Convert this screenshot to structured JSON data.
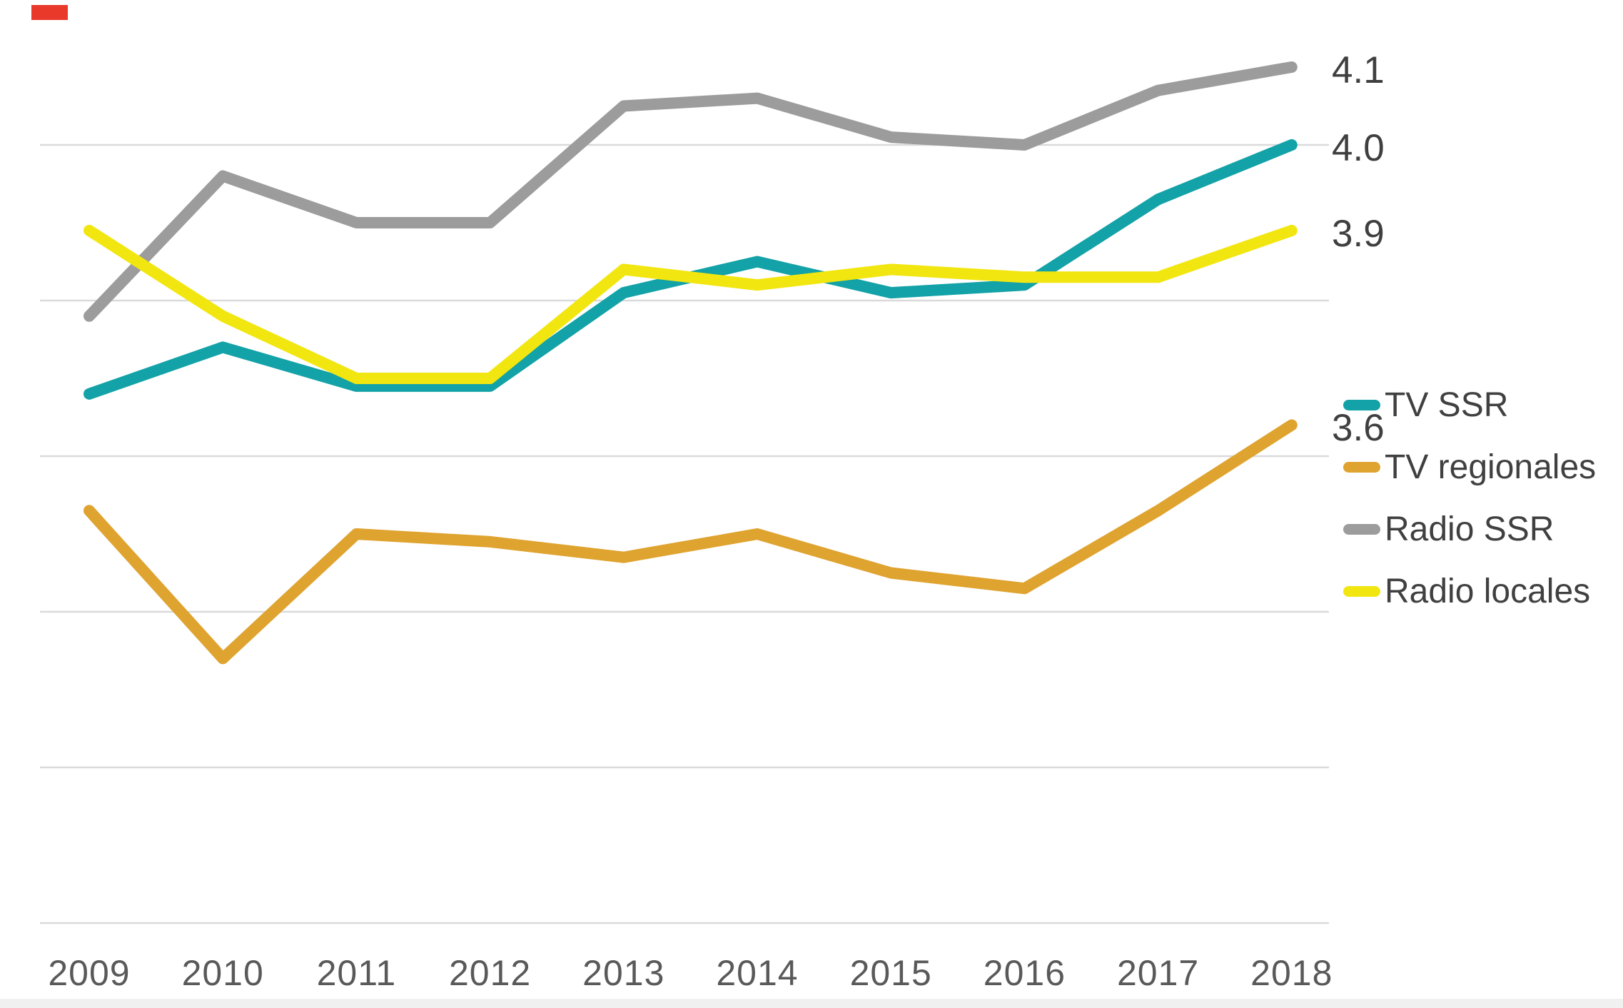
{
  "chart_data": {
    "type": "line",
    "title": "",
    "x": [
      2009,
      2010,
      2011,
      2012,
      2013,
      2014,
      2015,
      2016,
      2017,
      2018
    ],
    "series": [
      {
        "name": "TV SSR",
        "color": "#12A2A7",
        "values": [
          3.68,
          3.74,
          3.69,
          3.69,
          3.81,
          3.85,
          3.81,
          3.82,
          3.93,
          4.0
        ],
        "end_label": "4.0"
      },
      {
        "name": "TV regionales",
        "color": "#DFA32F",
        "values": [
          3.53,
          3.34,
          3.5,
          3.49,
          3.47,
          3.5,
          3.45,
          3.43,
          3.53,
          3.64
        ],
        "end_label": "3.6"
      },
      {
        "name": "Radio SSR",
        "color": "#9C9C9C",
        "values": [
          3.78,
          3.96,
          3.9,
          3.9,
          4.05,
          4.06,
          4.01,
          4.0,
          4.07,
          4.1
        ],
        "end_label": "4.1"
      },
      {
        "name": "Radio locales",
        "color": "#F2E610",
        "values": [
          3.89,
          3.78,
          3.7,
          3.7,
          3.84,
          3.82,
          3.84,
          3.83,
          3.83,
          3.89
        ],
        "end_label": "3.9"
      }
    ],
    "ylim": [
      2.9,
      4.2
    ],
    "gridline_values": [
      4.0,
      3.8,
      3.6,
      3.4,
      3.2,
      3.0
    ],
    "grid": "horizontal",
    "legend_position": "right",
    "xlabel": "",
    "ylabel": "",
    "colors": {
      "gridline": "#DADADA",
      "year_label": "#595959",
      "data_label": "#3f3f3f",
      "legend_label": "#404040"
    }
  }
}
